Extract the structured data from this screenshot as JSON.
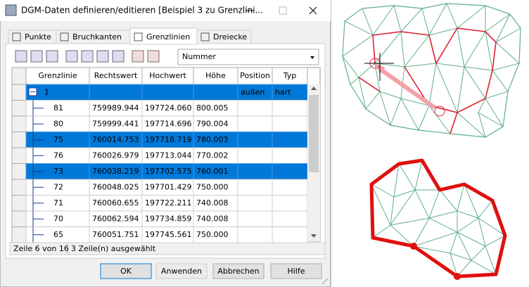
{
  "window": {
    "title": "DGM-Daten definieren/editieren [Beispiel 3 zu Grenzlini..."
  },
  "tabs": [
    "Punkte",
    "Bruchkanten",
    "Grenzlinien",
    "Dreiecke"
  ],
  "active_tab": 2,
  "dropdown": "Nummer",
  "table": {
    "columns": [
      "Grenzlinie",
      "Rechtswert",
      "Hochwert",
      "Höhe",
      "Position",
      "Typ"
    ],
    "rows": [
      {
        "cells": [
          "1",
          null,
          null,
          null,
          "außen",
          "hart"
        ],
        "selected": true,
        "level": 0
      },
      {
        "cells": [
          "81",
          "759989.944",
          "197724.060",
          "800.005",
          null,
          null
        ],
        "selected": false,
        "level": 1
      },
      {
        "cells": [
          "80",
          "759999.441",
          "197714.696",
          "790.004",
          null,
          null
        ],
        "selected": false,
        "level": 1
      },
      {
        "cells": [
          "75",
          "760014.753",
          "197718.719",
          "780.003",
          null,
          null
        ],
        "selected": true,
        "level": 1
      },
      {
        "cells": [
          "76",
          "760026.979",
          "197713.044",
          "770.002",
          null,
          null
        ],
        "selected": false,
        "level": 1
      },
      {
        "cells": [
          "73",
          "760038.219",
          "197702.575",
          "760.001",
          null,
          null
        ],
        "selected": true,
        "level": 1
      },
      {
        "cells": [
          "72",
          "760048.025",
          "197701.429",
          "750.000",
          null,
          null
        ],
        "selected": false,
        "level": 1
      },
      {
        "cells": [
          "71",
          "760060.655",
          "197722.211",
          "740.008",
          null,
          null
        ],
        "selected": false,
        "level": 1
      },
      {
        "cells": [
          "70",
          "760062.594",
          "197734.859",
          "740.008",
          null,
          null
        ],
        "selected": false,
        "level": 1
      },
      {
        "cells": [
          "65",
          "760051.751",
          "197745.561",
          "750.000",
          null,
          null
        ],
        "selected": false,
        "level": 1
      }
    ]
  },
  "status": [
    "Zeile 6 von 16",
    "3 Zeile(n) ausgewählt"
  ],
  "buttons": [
    {
      "label": "OK",
      "enabled": true
    },
    {
      "label": "Anwenden",
      "enabled": false
    },
    {
      "label": "Abbrechen",
      "enabled": true
    },
    {
      "label": "Hilfe",
      "enabled": true
    }
  ]
}
